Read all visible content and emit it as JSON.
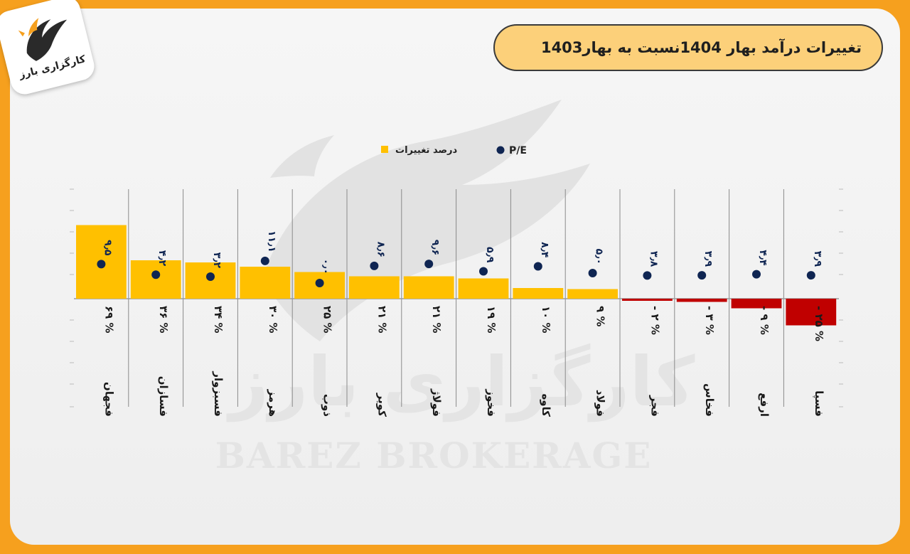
{
  "header": {
    "title": "تغییرات درآمد بهار 1404نسبت به بهار1403",
    "logo_text": "کارگزاری بارز"
  },
  "watermark": {
    "fa": "کارگزاری بارز",
    "en": "BAREZ BROKERAGE"
  },
  "colors": {
    "positive_bar": "#ffc000",
    "negative_bar": "#c00000",
    "pe_dot": "#0f2552",
    "accent_orange": "#f6a01e"
  },
  "chart_data": {
    "type": "bar",
    "legend": [
      {
        "key": "pe",
        "label": "P/E",
        "marker": "dot"
      },
      {
        "key": "change",
        "label": "درصد تغییرات",
        "marker": "square"
      }
    ],
    "legend_position": "top-center",
    "categories": [
      "فجهان",
      "فسازان",
      "فسبزوار",
      "هرمز",
      "ذوب",
      "کویر",
      "فولاژ",
      "فخوز",
      "کاوه",
      "فولاد",
      "فجر",
      "فخاس",
      "ارفع",
      "فسپا"
    ],
    "series": [
      {
        "name": "درصد تغییرات",
        "values": [
          69,
          36,
          34,
          30,
          25,
          21,
          21,
          19,
          10,
          9,
          -2,
          -3,
          -9,
          -25
        ],
        "labels": [
          "۶۹ %",
          "۳۶ %",
          "۳۴ %",
          "۳۰ %",
          "۲۵ %",
          "۲۱ %",
          "۲۱ %",
          "۱۹ %",
          "۱۰ %",
          "۹ %",
          "- ۲ %",
          "- ۳ %",
          "- ۹ %",
          "- ۲۵ %"
        ]
      },
      {
        "name": "P/E",
        "values": [
          9.5,
          4.2,
          3.2,
          11.1,
          0.0,
          8.6,
          9.6,
          5.9,
          8.4,
          5.0,
          3.8,
          3.9,
          4.4,
          3.9
        ],
        "labels": [
          "۹٫۵",
          "۴٫۲",
          "۳٫۲",
          "۱۱٫۱",
          "۰٫۰",
          "۸٫۶",
          "۹٫۶",
          "۵٫۹",
          "۸٫۴",
          "۵٫۰",
          "۳٫۸",
          "۳٫۹",
          "۴٫۴",
          "۳٫۹"
        ]
      }
    ],
    "grid": true
  }
}
